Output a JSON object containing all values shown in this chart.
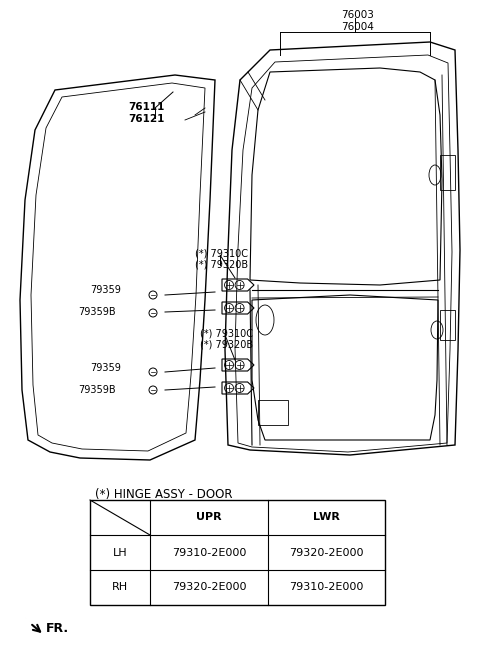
{
  "bg_color": "#ffffff",
  "table_title": "(*) HINGE ASSY - DOOR",
  "table_headers": [
    "",
    "UPR",
    "LWR"
  ],
  "table_rows": [
    [
      "LH",
      "79310-2E000",
      "79320-2E000"
    ],
    [
      "RH",
      "79320-2E000",
      "79310-2E000"
    ]
  ],
  "label_76003": "76003\n76004",
  "label_76111": "76111\n76121",
  "label_79310C_top": "(*) 79310C\n(*) 79320B",
  "label_79310C_mid": "(*) 79310C\n(*) 79320B",
  "label_79359_top": "79359",
  "label_79359B_top": "79359B",
  "label_79359_bot": "79359",
  "label_79359B_bot": "79359B",
  "label_FR": "FR."
}
